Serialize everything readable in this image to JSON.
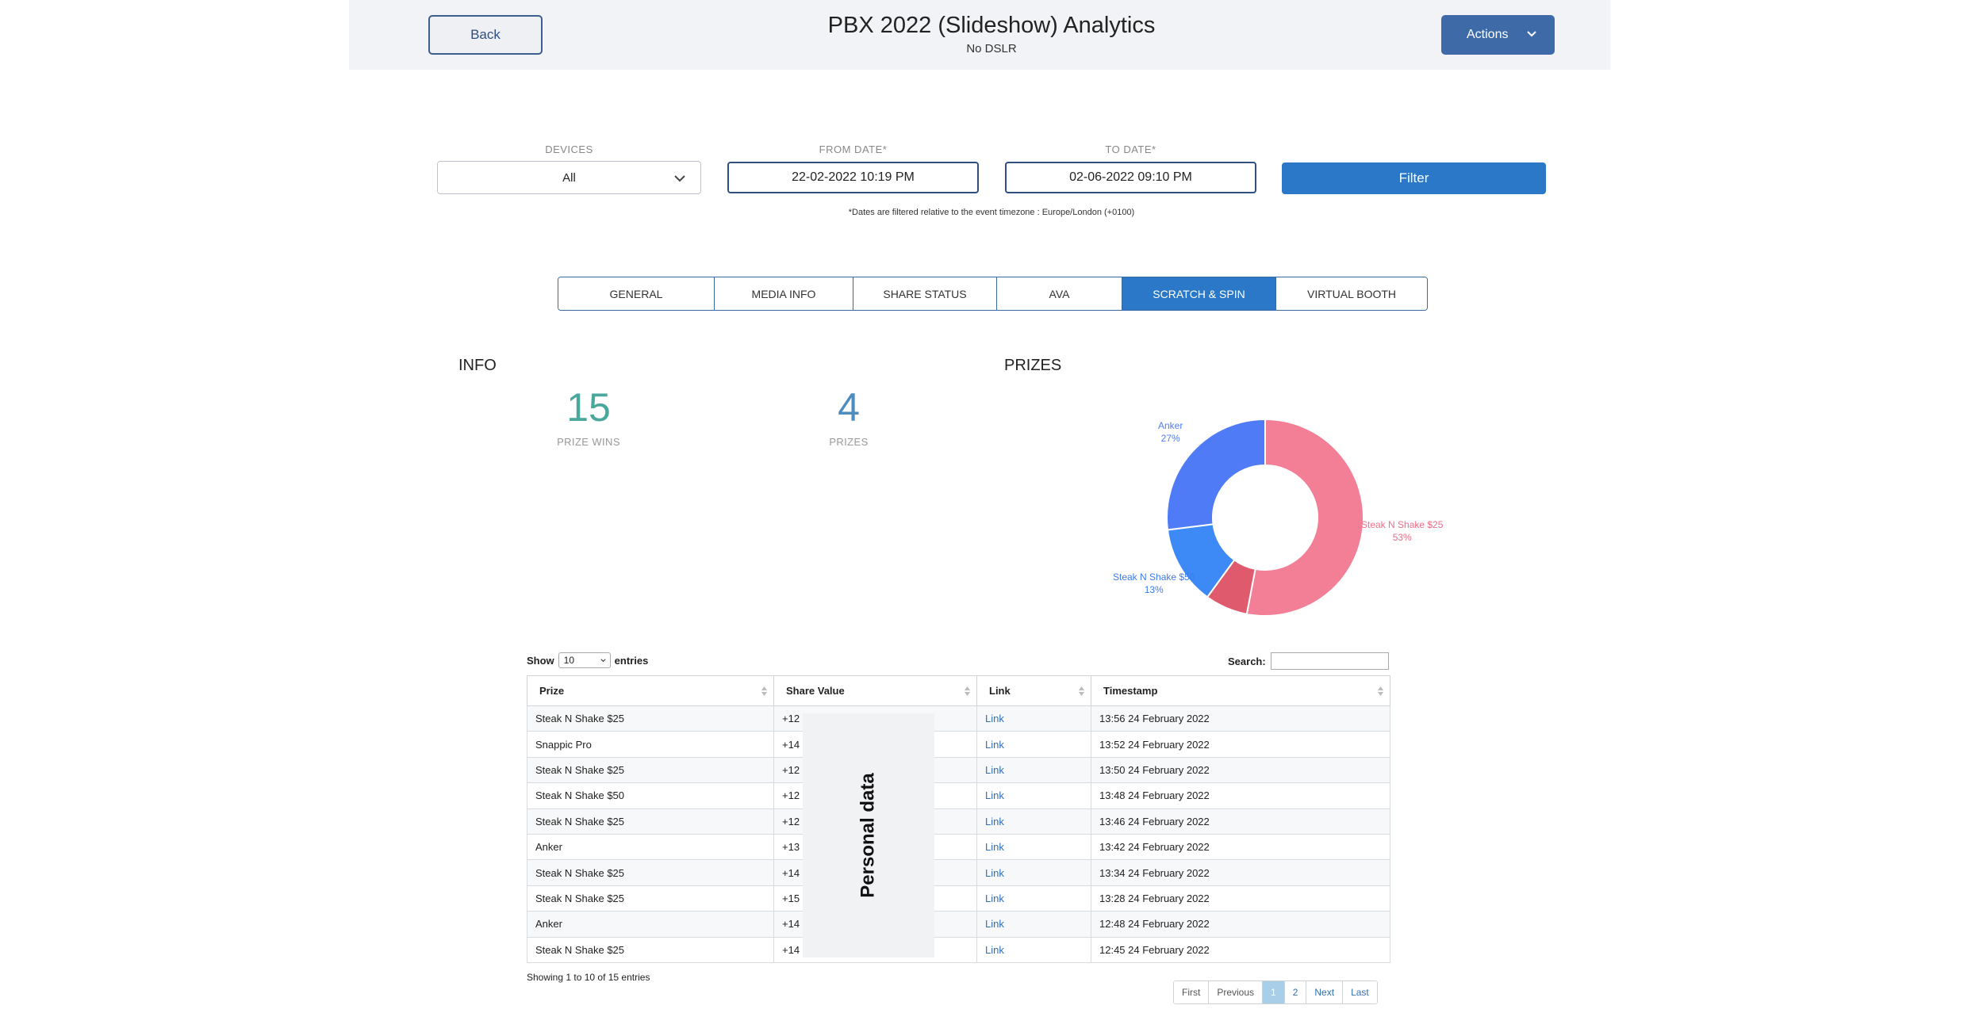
{
  "header": {
    "back_label": "Back",
    "title": "PBX 2022 (Slideshow) Analytics",
    "subtitle": "No DSLR",
    "actions_label": "Actions"
  },
  "filters": {
    "devices_label": "DEVICES",
    "devices_value": "All",
    "from_label": "FROM DATE*",
    "from_value": "22-02-2022 10:19 PM",
    "to_label": "TO DATE*",
    "to_value": "02-06-2022 09:10 PM",
    "filter_label": "Filter",
    "timezone_note": "*Dates are filtered relative to the event timezone : Europe/London (+0100)"
  },
  "tabs": [
    {
      "label": "GENERAL",
      "active": false
    },
    {
      "label": "MEDIA INFO",
      "active": false
    },
    {
      "label": "SHARE STATUS",
      "active": false
    },
    {
      "label": "AVA",
      "active": false
    },
    {
      "label": "SCRATCH & SPIN",
      "active": true
    },
    {
      "label": "VIRTUAL BOOTH",
      "active": false
    }
  ],
  "info": {
    "title": "INFO",
    "prize_wins_value": "15",
    "prize_wins_label": "PRIZE WINS",
    "prizes_value": "4",
    "prizes_label": "PRIZES"
  },
  "prizes": {
    "title": "PRIZES"
  },
  "chart_data": {
    "type": "pie",
    "donut": true,
    "categories": [
      "Steak N Shake $25",
      "Snappic Pro",
      "Steak N Shake $50",
      "Anker"
    ],
    "values": [
      53,
      7,
      13,
      27
    ],
    "labels": [
      "Steak N Shake $25",
      "",
      "Steak N Shake $50",
      "Anker"
    ],
    "percent_labels": [
      "53%",
      "",
      "13%",
      "27%"
    ],
    "colors": [
      "#f27f96",
      "#e05a6d",
      "#3d8af7",
      "#4f7cf6"
    ]
  },
  "table": {
    "show_label": "Show",
    "entries_label": "entries",
    "page_size": "10",
    "search_label": "Search:",
    "columns": [
      "Prize",
      "Share Value",
      "Link",
      "Timestamp"
    ],
    "rows": [
      {
        "prize": "Steak N Shake $25",
        "share": "+12",
        "link": "Link",
        "ts": "13:56 24 February 2022"
      },
      {
        "prize": "Snappic Pro",
        "share": "+14",
        "link": "Link",
        "ts": "13:52 24 February 2022"
      },
      {
        "prize": "Steak N Shake $25",
        "share": "+12",
        "link": "Link",
        "ts": "13:50 24 February 2022"
      },
      {
        "prize": "Steak N Shake $50",
        "share": "+12",
        "link": "Link",
        "ts": "13:48 24 February 2022"
      },
      {
        "prize": "Steak N Shake $25",
        "share": "+12",
        "link": "Link",
        "ts": "13:46 24 February 2022"
      },
      {
        "prize": "Anker",
        "share": "+13",
        "link": "Link",
        "ts": "13:42 24 February 2022"
      },
      {
        "prize": "Steak N Shake $25",
        "share": "+14",
        "link": "Link",
        "ts": "13:34 24 February 2022"
      },
      {
        "prize": "Steak N Shake $25",
        "share": "+15",
        "link": "Link",
        "ts": "13:28 24 February 2022"
      },
      {
        "prize": "Anker",
        "share": "+14",
        "link": "Link",
        "ts": "12:48 24 February 2022"
      },
      {
        "prize": "Steak N Shake $25",
        "share": "+14",
        "link": "Link",
        "ts": "12:45 24 February 2022"
      }
    ],
    "redaction_label": "Personal data",
    "showing_text": "Showing 1 to 10 of 15 entries"
  },
  "pagination": {
    "first": "First",
    "previous": "Previous",
    "pages": [
      "1",
      "2"
    ],
    "current": "1",
    "next": "Next",
    "last": "Last"
  }
}
